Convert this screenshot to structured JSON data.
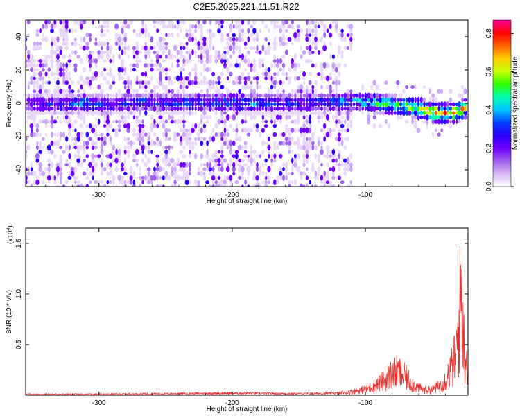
{
  "figure": {
    "title": "C2E5.2025.221.11.51.R22"
  },
  "colors": {
    "background": "#ffffff",
    "axis": "#000000",
    "snr_line": "#e8302c",
    "colormap": [
      "#ffffff",
      "#d9b8f5",
      "#a060f0",
      "#7000ff",
      "#2a00ff",
      "#0040ff",
      "#00c8ff",
      "#00ffb0",
      "#30ff00",
      "#c8ff00",
      "#ffcc00",
      "#ff6000",
      "#ff0000",
      "#ff00a0"
    ]
  },
  "chart_data": [
    {
      "type": "heatmap",
      "title": "",
      "xlabel": "Height of straight line (km)",
      "ylabel": "Frequency (Hz)",
      "xlim": [
        -355,
        -23
      ],
      "ylim": [
        -50,
        50
      ],
      "xticks": [
        -300,
        -200,
        -100
      ],
      "yticks": [
        -40,
        -20,
        0,
        20,
        40
      ],
      "xtick_labels": [
        "-300",
        "-200",
        "-100"
      ],
      "ytick_labels": [
        "-40",
        "-20",
        "0",
        "20",
        "40"
      ],
      "colorbar": {
        "label": "Normalized spectral amplitude",
        "range": [
          0.0,
          0.87
        ],
        "ticks": [
          0.0,
          0.2,
          0.4,
          0.6,
          0.8
        ],
        "tick_labels": [
          "0.0",
          "0.2",
          "0.4",
          "0.6",
          "0.8"
        ]
      },
      "noise_region_upper_x": -110,
      "signal_ridge": {
        "description_free": true,
        "x": [
          -350,
          -330,
          -310,
          -290,
          -270,
          -250,
          -230,
          -210,
          -190,
          -170,
          -150,
          -130,
          -110,
          -100,
          -90,
          -80,
          -70,
          -60,
          -50,
          -40,
          -30,
          -25
        ],
        "frequency": [
          0,
          -1,
          0,
          -1,
          1,
          0,
          0,
          1,
          0,
          0,
          0,
          1,
          1,
          1,
          0,
          -1,
          -2,
          -3,
          -5,
          -6,
          -5,
          -3
        ],
        "amplitude": [
          0.25,
          0.3,
          0.4,
          0.3,
          0.35,
          0.3,
          0.4,
          0.35,
          0.4,
          0.35,
          0.35,
          0.35,
          0.45,
          0.5,
          0.55,
          0.6,
          0.65,
          0.7,
          0.75,
          0.8,
          0.85,
          0.8
        ]
      }
    },
    {
      "type": "line",
      "title": "",
      "xlabel": "Height of straight line (km)",
      "ylabel": "SNR (10 * v/v)",
      "y_multiplier_label": "(x10",
      "y_multiplier_exponent": "4",
      "y_multiplier_close": ")",
      "xlim": [
        -355,
        -23
      ],
      "ylim": [
        0,
        1.65
      ],
      "xticks": [
        -300,
        -200,
        -100
      ],
      "yticks": [
        0.5,
        1.0,
        1.5
      ],
      "xtick_labels": [
        "-300",
        "-200",
        "-100"
      ],
      "ytick_labels": [
        "0.5",
        "1.0",
        "1.5"
      ],
      "series": [
        {
          "x": [
            -355,
            -300,
            -250,
            -200,
            -150,
            -120,
            -110,
            -100,
            -95,
            -90,
            -85,
            -80,
            -76,
            -72,
            -68,
            -64,
            -60,
            -55,
            -50,
            -45,
            -40,
            -36,
            -32,
            -30,
            -28,
            -26,
            -24,
            -23
          ],
          "y": [
            0.01,
            0.01,
            0.015,
            0.02,
            0.015,
            0.02,
            0.05,
            0.08,
            0.12,
            0.16,
            0.22,
            0.3,
            0.32,
            0.28,
            0.22,
            0.15,
            0.1,
            0.07,
            0.08,
            0.12,
            0.22,
            0.35,
            0.55,
            0.9,
            1.55,
            0.7,
            0.5,
            0.4
          ]
        }
      ]
    }
  ]
}
